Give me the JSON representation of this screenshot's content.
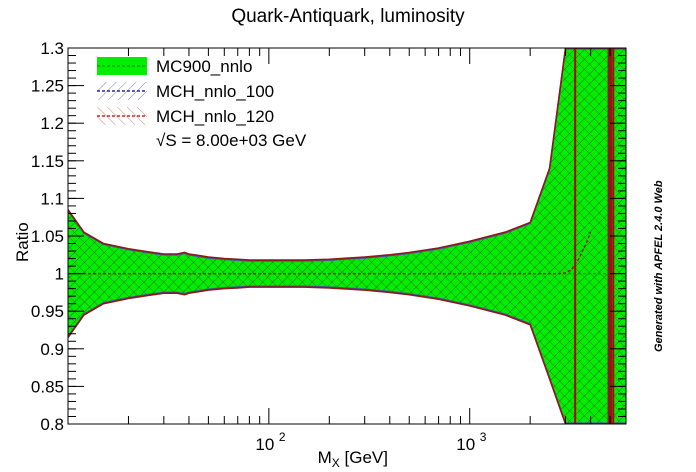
{
  "chart_data": {
    "type": "line",
    "title": "Quark-Antiquark, luminosity",
    "xlabel": "M_X [GeV]",
    "ylabel": "Ratio",
    "xscale": "log",
    "xlim": [
      10,
      6000
    ],
    "ylim": [
      0.8,
      1.3
    ],
    "x_tick_labels": [
      {
        "value": 100,
        "base": "10",
        "exp": "2"
      },
      {
        "value": 1000,
        "base": "10",
        "exp": "3"
      }
    ],
    "y_ticks": [
      0.8,
      0.85,
      0.9,
      0.95,
      1.0,
      1.05,
      1.1,
      1.15,
      1.2,
      1.25,
      1.3
    ],
    "y_tick_labels": [
      "0.8",
      "0.85",
      "0.9",
      "0.95",
      "1",
      "1.05",
      "1.1",
      "1.15",
      "1.2",
      "1.25",
      "1.3"
    ],
    "legend_position": "top-left",
    "annotation": "√S = 8.00e+03 GeV",
    "watermark": "Generated with APFEL 2.4.0 Web",
    "series": [
      {
        "name": "MC900_nnlo",
        "color": "#00ee00",
        "style": "band",
        "x": [
          10,
          12,
          15,
          20,
          25,
          30,
          35,
          38,
          40,
          45,
          50,
          60,
          70,
          80,
          100,
          120,
          150,
          200,
          300,
          400,
          500,
          700,
          1000,
          1500,
          2000,
          2500,
          3000,
          3500,
          4000,
          5000,
          6000
        ],
        "upper": [
          1.085,
          1.055,
          1.04,
          1.033,
          1.029,
          1.026,
          1.026,
          1.028,
          1.026,
          1.024,
          1.022,
          1.02,
          1.019,
          1.018,
          1.018,
          1.018,
          1.018,
          1.019,
          1.022,
          1.025,
          1.028,
          1.034,
          1.043,
          1.055,
          1.068,
          1.14,
          1.3,
          1.3,
          1.3,
          1.3,
          1.3
        ],
        "lower": [
          0.915,
          0.945,
          0.96,
          0.967,
          0.971,
          0.974,
          0.974,
          0.972,
          0.974,
          0.976,
          0.978,
          0.98,
          0.981,
          0.982,
          0.982,
          0.982,
          0.982,
          0.981,
          0.978,
          0.975,
          0.972,
          0.966,
          0.957,
          0.945,
          0.932,
          0.86,
          0.8,
          0.8,
          0.8,
          0.8,
          0.8
        ],
        "central": [
          1.0,
          1.0,
          1.0,
          1.0,
          1.0,
          1.0,
          1.0,
          1.0,
          1.0,
          1.0,
          1.0,
          1.0,
          1.0,
          1.0,
          1.0,
          1.0,
          1.0,
          1.0,
          1.0,
          1.0,
          1.0,
          1.0,
          1.0,
          1.0,
          1.0,
          1.0,
          1.0,
          1.0,
          1.0,
          1.0,
          1.0
        ]
      },
      {
        "name": "MCH_nnlo_100",
        "color": "#000080",
        "style": "hatched"
      },
      {
        "name": "MCH_nnlo_120",
        "color": "#b30000",
        "style": "hatched",
        "x": [
          10,
          100,
          1000,
          2000,
          2500,
          2800,
          3000,
          3200,
          3500,
          3800,
          4000
        ],
        "central": [
          1.0,
          1.0,
          1.0,
          1.0,
          1.0,
          1.0,
          1.001,
          1.005,
          1.02,
          1.04,
          1.055
        ]
      }
    ]
  }
}
